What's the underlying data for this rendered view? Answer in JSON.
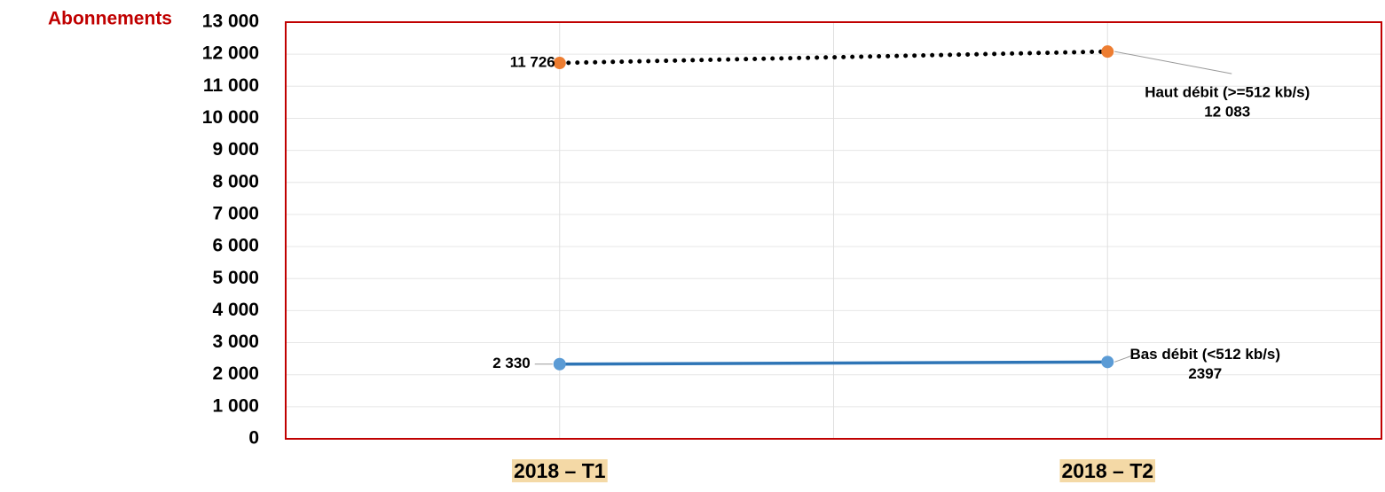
{
  "chart_data": {
    "type": "line",
    "y_axis_label": "Abonnements",
    "categories": [
      "2018 – T1",
      "2018 – T2"
    ],
    "series": [
      {
        "name": "Haut débit (>=512 kb/s)",
        "color": "#ed7d31",
        "line_color": "#000000",
        "line_style": "dotted",
        "values": [
          11726,
          12083
        ],
        "value_labels": [
          "11 726",
          "12 083"
        ]
      },
      {
        "name": "Bas débit (<512 kb/s)",
        "color": "#5b9bd5",
        "line_color": "#2e75b6",
        "line_style": "solid",
        "values": [
          2330,
          2397
        ],
        "value_labels": [
          "2 330",
          "2397"
        ]
      }
    ],
    "ylim": [
      0,
      13000
    ],
    "yticks": [
      {
        "value": 0,
        "label": "0"
      },
      {
        "value": 1000,
        "label": "1 000"
      },
      {
        "value": 2000,
        "label": "2 000"
      },
      {
        "value": 3000,
        "label": "3 000"
      },
      {
        "value": 4000,
        "label": "4 000"
      },
      {
        "value": 5000,
        "label": "5 000"
      },
      {
        "value": 6000,
        "label": "6 000"
      },
      {
        "value": 7000,
        "label": "7 000"
      },
      {
        "value": 8000,
        "label": "8 000"
      },
      {
        "value": 9000,
        "label": "9 000"
      },
      {
        "value": 10000,
        "label": "10 000"
      },
      {
        "value": 11000,
        "label": "11 000"
      },
      {
        "value": 12000,
        "label": "12 000"
      },
      {
        "value": 13000,
        "label": "13 000"
      }
    ],
    "grid": true
  }
}
